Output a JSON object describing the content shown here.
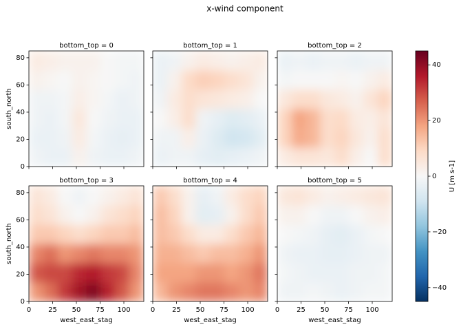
{
  "chart_data": {
    "type": "heatmap",
    "title": "x-wind component",
    "xlabel": "west_east_stag",
    "ylabel": "south_north",
    "xlim": [
      0,
      121
    ],
    "ylim": [
      0,
      85
    ],
    "xticks": [
      0,
      25,
      50,
      75,
      100
    ],
    "yticks": [
      0,
      20,
      40,
      60,
      80
    ],
    "colormap": [
      "#053061",
      "#2166ac",
      "#4393c3",
      "#92c5de",
      "#d1e5f0",
      "#f7f7f7",
      "#fddbc7",
      "#f4a582",
      "#d6604d",
      "#b2182b",
      "#67001f"
    ],
    "colorbar": {
      "label": "U [m s-1]",
      "lim": [
        -45,
        45
      ],
      "ticks": [
        {
          "value": -40,
          "label": "−40"
        },
        {
          "value": -20,
          "label": "−20"
        },
        0,
        20,
        40
      ]
    },
    "facets": [
      {
        "title": "bottom_top = 0",
        "z": [
          [
            -2,
            -3,
            -3,
            2,
            -2,
            -3,
            -3,
            -2
          ],
          [
            -3,
            -3,
            -2,
            4,
            -1,
            -3,
            -4,
            -3
          ],
          [
            -2,
            -3,
            -1,
            5,
            0,
            -2,
            -3,
            -3
          ],
          [
            -2,
            -2,
            -1,
            3,
            1,
            -1,
            -3,
            -2
          ],
          [
            2,
            1,
            0,
            2,
            1,
            0,
            -1,
            -2
          ],
          [
            4,
            3,
            2,
            2,
            2,
            0,
            -1,
            -1
          ]
        ]
      },
      {
        "title": "bottom_top = 1",
        "z": [
          [
            -3,
            -2,
            -2,
            -4,
            -5,
            -4,
            -3,
            -2
          ],
          [
            -2,
            -2,
            3,
            -3,
            -6,
            -9,
            -8,
            -5
          ],
          [
            0,
            3,
            8,
            -2,
            -4,
            -6,
            -5,
            -3
          ],
          [
            -2,
            4,
            8,
            6,
            5,
            4,
            3,
            0
          ],
          [
            -3,
            2,
            9,
            11,
            10,
            8,
            6,
            2
          ],
          [
            -3,
            -2,
            2,
            4,
            3,
            2,
            3,
            4
          ]
        ]
      },
      {
        "title": "bottom_top = 2",
        "z": [
          [
            4,
            6,
            6,
            5,
            8,
            3,
            0,
            8
          ],
          [
            10,
            17,
            15,
            8,
            10,
            5,
            2,
            8
          ],
          [
            10,
            18,
            15,
            8,
            9,
            4,
            3,
            6
          ],
          [
            5,
            8,
            8,
            5,
            4,
            2,
            6,
            10
          ],
          [
            -1,
            0,
            0,
            0,
            1,
            0,
            2,
            4
          ],
          [
            -3,
            -2,
            -3,
            -2,
            -2,
            -3,
            -2,
            -2
          ]
        ]
      },
      {
        "title": "bottom_top = 3",
        "z": [
          [
            20,
            25,
            32,
            38,
            42,
            35,
            28,
            20
          ],
          [
            28,
            30,
            30,
            34,
            36,
            32,
            30,
            22
          ],
          [
            22,
            25,
            20,
            22,
            24,
            22,
            22,
            20
          ],
          [
            12,
            12,
            10,
            8,
            10,
            12,
            12,
            14
          ],
          [
            8,
            6,
            2,
            0,
            2,
            6,
            8,
            10
          ],
          [
            6,
            4,
            0,
            -2,
            0,
            2,
            4,
            6
          ]
        ]
      },
      {
        "title": "bottom_top = 4",
        "z": [
          [
            15,
            20,
            22,
            24,
            24,
            22,
            20,
            22
          ],
          [
            18,
            18,
            18,
            20,
            20,
            18,
            20,
            24
          ],
          [
            16,
            16,
            14,
            12,
            14,
            14,
            16,
            20
          ],
          [
            14,
            12,
            8,
            4,
            4,
            8,
            12,
            15
          ],
          [
            14,
            10,
            2,
            -5,
            -4,
            2,
            8,
            12
          ],
          [
            12,
            8,
            2,
            -4,
            -2,
            4,
            8,
            10
          ]
        ]
      },
      {
        "title": "bottom_top = 5",
        "z": [
          [
            -2,
            -2,
            -1,
            -2,
            -3,
            -2,
            -1,
            -1
          ],
          [
            -1,
            -2,
            -3,
            -3,
            -3,
            -2,
            -2,
            -1
          ],
          [
            -2,
            -3,
            -3,
            -4,
            -4,
            -3,
            -2,
            -2
          ],
          [
            0,
            -1,
            -2,
            -4,
            -5,
            -3,
            -1,
            0
          ],
          [
            2,
            2,
            0,
            -2,
            -2,
            0,
            2,
            3
          ],
          [
            5,
            6,
            4,
            2,
            3,
            4,
            5,
            6
          ]
        ]
      }
    ]
  }
}
